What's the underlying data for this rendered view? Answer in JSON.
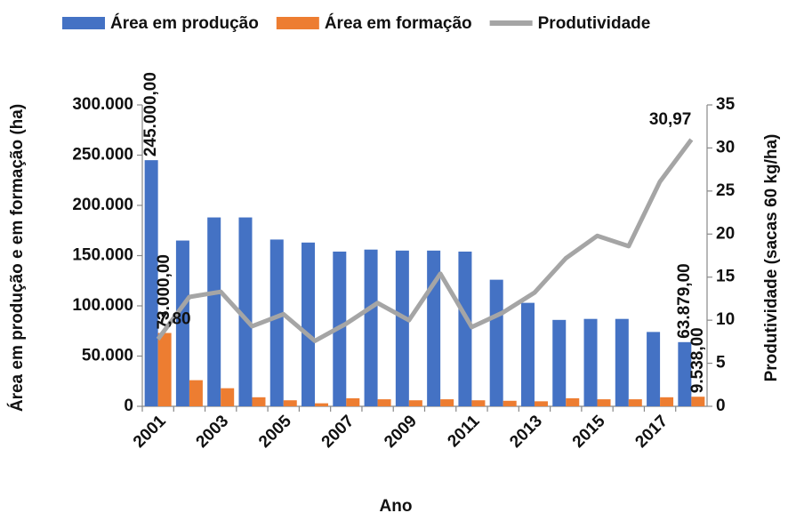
{
  "chart_data": {
    "type": "bar",
    "categories": [
      "2001",
      null,
      "2003",
      null,
      "2005",
      null,
      "2007",
      null,
      "2009",
      null,
      "2011",
      null,
      "2013",
      null,
      "2015",
      null,
      "2017",
      null
    ],
    "series": [
      {
        "name": "Área em produção",
        "color": "#4472c4",
        "values": [
          245000,
          165000,
          188000,
          188000,
          166000,
          163000,
          154000,
          156000,
          155000,
          155000,
          154000,
          126000,
          103000,
          86000,
          87000,
          87000,
          74000,
          63879
        ],
        "value_labels": [
          "245.000,00",
          null,
          null,
          null,
          null,
          null,
          null,
          null,
          null,
          null,
          null,
          null,
          null,
          null,
          null,
          null,
          null,
          "63.879,00"
        ]
      },
      {
        "name": "Área em formação",
        "color": "#ed7d31",
        "values": [
          73000,
          26000,
          18000,
          9000,
          6000,
          3000,
          8000,
          7000,
          6000,
          7000,
          6000,
          5500,
          5000,
          8000,
          7000,
          7000,
          9000,
          9538
        ],
        "value_labels": [
          "73.000,00",
          null,
          null,
          null,
          null,
          null,
          null,
          null,
          null,
          null,
          null,
          null,
          null,
          null,
          null,
          null,
          null,
          "9.538,00"
        ]
      },
      {
        "name": "Produtividade",
        "color": "#a5a5a5",
        "type": "line",
        "axis": "y2",
        "values": [
          7.8,
          12.7,
          13.3,
          9.3,
          10.7,
          7.6,
          9.6,
          12.0,
          10.0,
          15.4,
          9.2,
          10.9,
          13.2,
          17.2,
          19.8,
          18.6,
          26.1,
          30.97
        ],
        "value_labels": [
          "7,80",
          null,
          null,
          null,
          null,
          null,
          null,
          null,
          null,
          null,
          null,
          null,
          null,
          null,
          null,
          null,
          null,
          "30,97"
        ]
      }
    ],
    "ylabel": "Área em produção e em formação (ha)",
    "y2label": "Produtividade (sacas 60 kg/ha)",
    "xlabel": "Ano",
    "ylim": [
      0,
      300000
    ],
    "yticks": [
      0,
      {
        "value": 50000,
        "label": "50.000"
      },
      {
        "value": 100000,
        "label": "100.000"
      },
      {
        "value": 150000,
        "label": "150.000"
      },
      {
        "value": 200000,
        "label": "200.000"
      },
      {
        "value": 250000,
        "label": "250.000"
      },
      {
        "value": 300000,
        "label": "300.000"
      }
    ],
    "y2lim": [
      0,
      35
    ],
    "y2ticks": [
      0,
      5,
      10,
      15,
      20,
      25,
      30,
      35
    ],
    "legend": "top"
  }
}
